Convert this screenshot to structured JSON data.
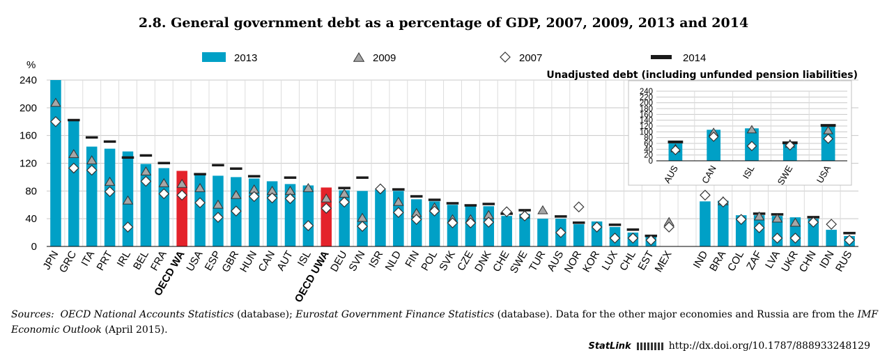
{
  "title": "2.8. General government debt as a percentage of GDP, 2007, 2009, 2013 and 2014",
  "legend": [
    {
      "key": "2013",
      "symbol": "bar"
    },
    {
      "key": "2009",
      "symbol": "triangle"
    },
    {
      "key": "2007",
      "symbol": "diamond"
    },
    {
      "key": "2014",
      "symbol": "dash"
    }
  ],
  "colors": {
    "bar": "#00a0c6",
    "highlight": "#e4222a",
    "marker_fill_triangle": "#a6a6a6",
    "dash": "#1a1a1a",
    "grid": "#c8c8c8"
  },
  "sources": {
    "prefix": "Sources:",
    "src1": "OECD National Accounts Statistics",
    "mid1": " (database); ",
    "src2": "Eurostat Government Finance Statistics",
    "mid2": " (database). Data for the other major economies and Russia are from the ",
    "src3": "IMF Economic Outlook",
    "end": " (April 2015)."
  },
  "statlink": {
    "brand": "StatLink",
    "url": "http://dx.doi.org/10.1787/888933248129"
  },
  "chart_data": [
    {
      "type": "bar",
      "ylabel": "%",
      "ylim": [
        0,
        240
      ],
      "yticks": [
        0,
        40,
        80,
        120,
        160,
        200,
        240
      ],
      "grid": true,
      "legend_position": "top",
      "categories": [
        "JPN",
        "GRC",
        "ITA",
        "PRT",
        "IRL",
        "BEL",
        "FRA",
        "OECD WA",
        "USA",
        "ESP",
        "GBR",
        "HUN",
        "CAN",
        "AUT",
        "ISL",
        "OECD UWA",
        "DEU",
        "SVN",
        "ISR",
        "NLD",
        "FIN",
        "POL",
        "SVK",
        "CZE",
        "DNK",
        "CHE",
        "SWE",
        "TUR",
        "AUS",
        "NOR",
        "KOR",
        "LUX",
        "CHL",
        "EST",
        "MEX",
        "",
        "IND",
        "BRA",
        "COL",
        "ZAF",
        "LVA",
        "UKR",
        "CHN",
        "IDN",
        "RUS"
      ],
      "highlighted": [
        "OECD WA",
        "OECD UWA"
      ],
      "bold_categories": [
        "OECD WA",
        "OECD UWA"
      ],
      "series": [
        {
          "name": "2013",
          "values": [
            240,
            181,
            144,
            141,
            137,
            119,
            113,
            109,
            103,
            102,
            100,
            98,
            94,
            90,
            88,
            85,
            81,
            80,
            82,
            80,
            68,
            65,
            60,
            58,
            58,
            44,
            47,
            40,
            40,
            32,
            36,
            28,
            20,
            14,
            null,
            null,
            65,
            66,
            45,
            45,
            44,
            42,
            40,
            24,
            15
          ]
        },
        {
          "name": "2009",
          "values": [
            207,
            133,
            124,
            93,
            66,
            108,
            91,
            90,
            84,
            60,
            74,
            82,
            80,
            80,
            84,
            69,
            76,
            41,
            null,
            64,
            48,
            56,
            39,
            39,
            45,
            null,
            46,
            52,
            null,
            null,
            null,
            null,
            null,
            null,
            35,
            null,
            null,
            65,
            null,
            43,
            40,
            34,
            null,
            null,
            null
          ]
        },
        {
          "name": "2007",
          "values": [
            180,
            113,
            110,
            79,
            28,
            94,
            76,
            74,
            63,
            42,
            51,
            72,
            70,
            69,
            30,
            55,
            64,
            29,
            83,
            49,
            39,
            51,
            34,
            34,
            35,
            50,
            44,
            null,
            20,
            57,
            28,
            12,
            12,
            9,
            28,
            null,
            74,
            64,
            39,
            27,
            12,
            12,
            35,
            32,
            9
          ]
        },
        {
          "name": "2014",
          "values": [
            null,
            182,
            157,
            151,
            128,
            131,
            120,
            null,
            104,
            117,
            112,
            101,
            null,
            99,
            null,
            null,
            84,
            99,
            null,
            82,
            72,
            67,
            62,
            59,
            61,
            47,
            52,
            null,
            43,
            34,
            null,
            31,
            24,
            15,
            null,
            null,
            null,
            null,
            null,
            47,
            46,
            null,
            42,
            null,
            19
          ]
        }
      ]
    },
    {
      "type": "bar",
      "title": "Unadjusted debt (including unfunded pension liabilities)",
      "ylim": [
        0,
        240
      ],
      "yticks": [
        0,
        20,
        40,
        60,
        80,
        100,
        120,
        140,
        160,
        180,
        200,
        220,
        240
      ],
      "grid": true,
      "categories": [
        "AUS",
        "CAN",
        "ISL",
        "SWE",
        "USA"
      ],
      "series": [
        {
          "name": "2013",
          "values": [
            60,
            107,
            112,
            60,
            118
          ]
        },
        {
          "name": "2009",
          "values": [
            42,
            98,
            107,
            58,
            104
          ]
        },
        {
          "name": "2007",
          "values": [
            37,
            83,
            51,
            53,
            76
          ]
        },
        {
          "name": "2014",
          "values": [
            65,
            null,
            null,
            62,
            122
          ]
        }
      ]
    }
  ]
}
